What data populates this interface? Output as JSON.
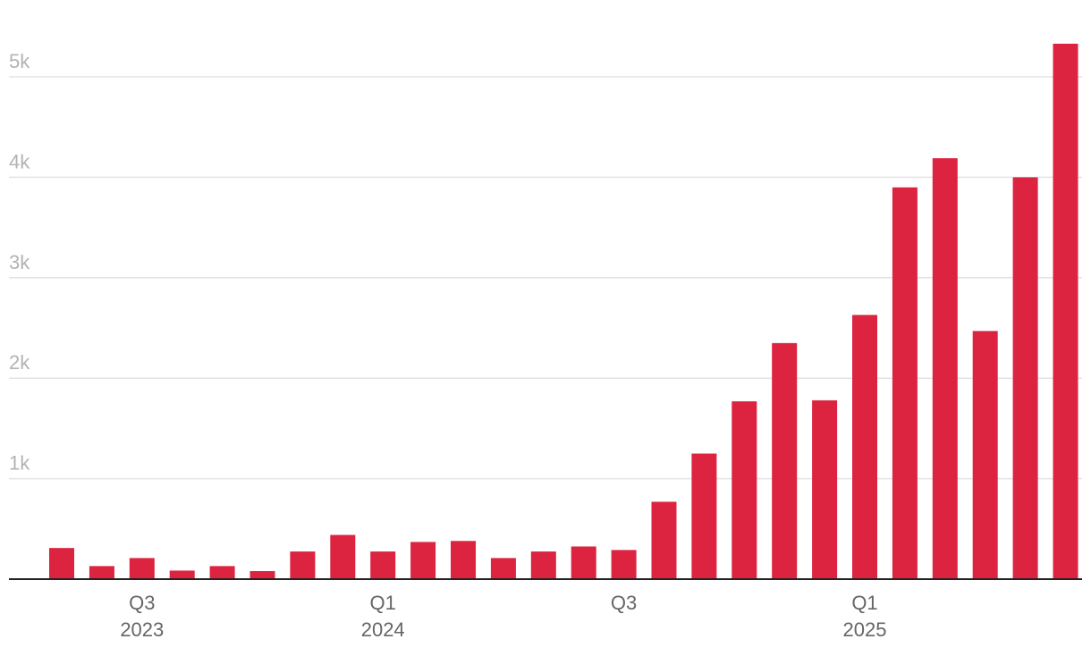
{
  "chart_data": {
    "type": "bar",
    "title": "",
    "xlabel": "",
    "ylabel": "",
    "categories": [
      "2023-06",
      "2023-07",
      "2023-08",
      "2023-09",
      "2023-10",
      "2023-11",
      "2023-12",
      "2024-01",
      "2024-02",
      "2024-03",
      "2024-04",
      "2024-05",
      "2024-06",
      "2024-07",
      "2024-08",
      "2024-09",
      "2024-10",
      "2024-11",
      "2024-12",
      "2025-01",
      "2025-02",
      "2025-03",
      "2025-04",
      "2025-05",
      "2025-06",
      "2025-07"
    ],
    "values": [
      310,
      130,
      210,
      85,
      130,
      80,
      275,
      440,
      275,
      370,
      380,
      210,
      275,
      325,
      290,
      770,
      1250,
      1770,
      2350,
      1780,
      2630,
      3900,
      4190,
      2470,
      4000,
      5330
    ],
    "ylim": [
      0,
      5450
    ],
    "yticks": [
      {
        "value": 1000,
        "label": "1k"
      },
      {
        "value": 2000,
        "label": "2k"
      },
      {
        "value": 3000,
        "label": "3k"
      },
      {
        "value": 4000,
        "label": "4k"
      },
      {
        "value": 5000,
        "label": "5k"
      }
    ],
    "xticks": [
      {
        "index": 2,
        "line1": "Q3",
        "line2": "2023"
      },
      {
        "index": 8,
        "line1": "Q1",
        "line2": "2024"
      },
      {
        "index": 14,
        "line1": "Q3",
        "line2": ""
      },
      {
        "index": 20,
        "line1": "Q1",
        "line2": "2025"
      }
    ],
    "grid": true,
    "bar_color": "#dc2340"
  }
}
